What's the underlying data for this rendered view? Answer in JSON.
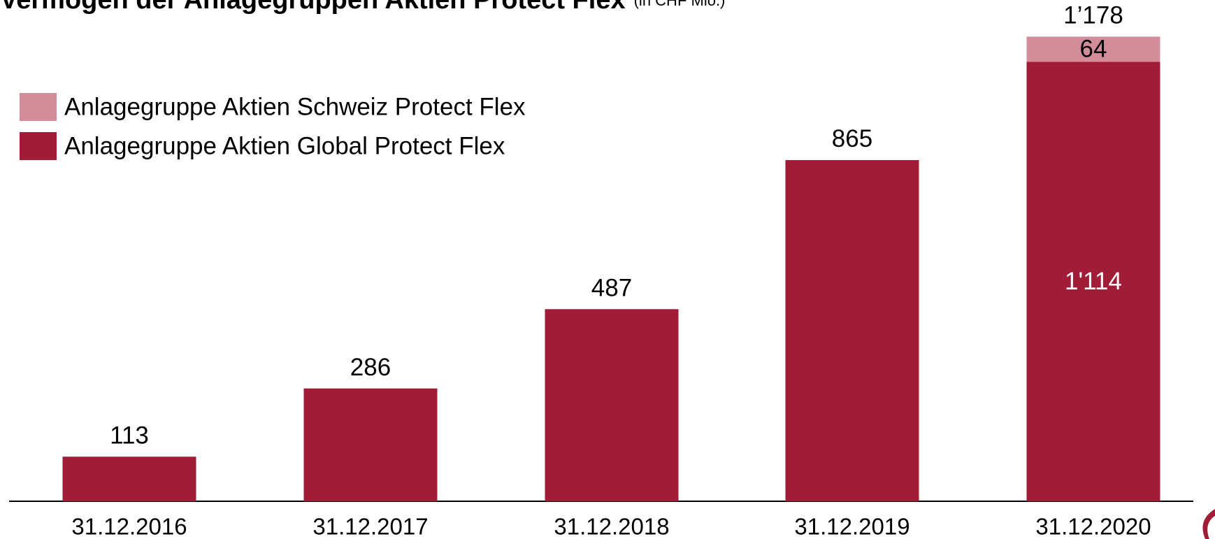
{
  "chart_data": {
    "type": "stacked_bar",
    "title": "Vermögen der Anlagegruppen Aktien Protect Flex",
    "subtitle": "(in CHF Mio.)",
    "categories": [
      "31.12.2016",
      "31.12.2017",
      "31.12.2018",
      "31.12.2019",
      "31.12.2020"
    ],
    "series": [
      {
        "name": "Anlagegruppe Aktien Global Protect Flex",
        "color": "#a01c37",
        "values": [
          113,
          286,
          487,
          865,
          1114
        ],
        "value_labels": [
          null,
          null,
          null,
          null,
          "1'114"
        ]
      },
      {
        "name": "Anlagegruppe Aktien Schweiz Protect Flex",
        "color": "#d38c9a",
        "values": [
          null,
          null,
          null,
          null,
          64
        ],
        "value_labels": [
          null,
          null,
          null,
          null,
          "64"
        ]
      }
    ],
    "totals": {
      "values": [
        113,
        286,
        487,
        865,
        1178
      ],
      "value_labels": [
        "113",
        "286",
        "487",
        "865",
        "1’178"
      ]
    },
    "ylim": [
      0,
      1200
    ]
  }
}
